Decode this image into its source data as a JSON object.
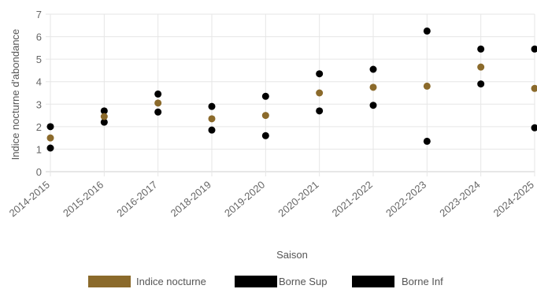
{
  "chart_data": {
    "type": "scatter",
    "title": "",
    "xlabel": "Saison",
    "ylabel": "Indice nocturne d'abondance",
    "categories": [
      "2014-2015",
      "2015-2016",
      "2016-2017",
      "2018-2019",
      "2019-2020",
      "2020-2021",
      "2021-2022",
      "2022-2023",
      "2023-2024",
      "2024-2025"
    ],
    "yticks": [
      0,
      1,
      2,
      3,
      4,
      5,
      6,
      7
    ],
    "ylim": [
      0,
      7
    ],
    "grid": true,
    "legend_position": "bottom",
    "series": [
      {
        "name": "Indice nocturne",
        "color": "#8b6a2b",
        "values": [
          1.5,
          2.45,
          3.05,
          2.35,
          2.5,
          3.5,
          3.75,
          3.8,
          4.65,
          3.7
        ]
      },
      {
        "name": "Borne Sup",
        "color": "#000000",
        "values": [
          2.0,
          2.7,
          3.45,
          2.9,
          3.35,
          4.35,
          4.55,
          6.25,
          5.45,
          5.45
        ]
      },
      {
        "name": "Borne Inf",
        "color": "#000000",
        "values": [
          1.05,
          2.2,
          2.65,
          1.85,
          1.6,
          2.7,
          2.95,
          1.35,
          3.9,
          1.95
        ]
      }
    ]
  }
}
